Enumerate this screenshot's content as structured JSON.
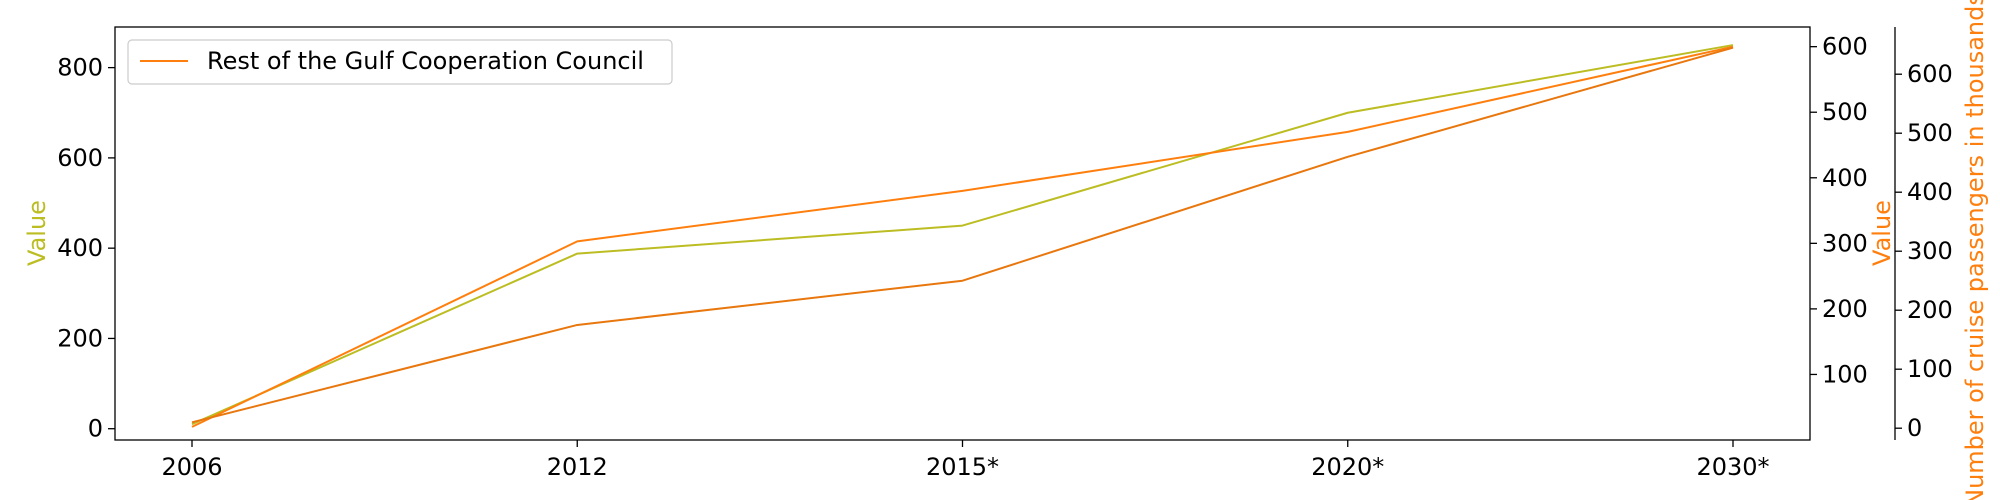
{
  "chart_data": {
    "type": "line",
    "categories": [
      "2006",
      "2012",
      "2015*",
      "2020*",
      "2030*"
    ],
    "grid": false,
    "legend": {
      "placement": "top-left",
      "entries": [
        "Rest of the Gulf Cooperation Council"
      ]
    },
    "axes": {
      "left": {
        "label": "Value",
        "label_color": "#bcbd22",
        "ylim": [
          -25,
          890
        ],
        "ticks": [
          0,
          200,
          400,
          600,
          800
        ],
        "tick_labels": [
          "0",
          "200",
          "400",
          "600",
          "800"
        ]
      },
      "right1": {
        "label": "Value",
        "label_color": "#ff7f0e",
        "ylim": [
          0,
          630
        ],
        "ticks": [
          100,
          200,
          300,
          400,
          500,
          600
        ],
        "tick_labels": [
          "100",
          "200",
          "300",
          "400",
          "500",
          "600"
        ]
      },
      "right2": {
        "label": "Number of cruise passengers in thousands",
        "label_color": "#ff7f0e",
        "ylim": [
          -20,
          680
        ],
        "ticks": [
          0,
          100,
          200,
          300,
          400,
          500,
          600
        ],
        "tick_labels": [
          "0",
          "100",
          "200",
          "300",
          "400",
          "500",
          "600"
        ]
      }
    },
    "series": [
      {
        "axis": "left",
        "color": "#bcbd22",
        "values": [
          10,
          388,
          450,
          700,
          850
        ]
      },
      {
        "axis": "right1",
        "color": "#ff7f0e",
        "values": [
          20,
          303,
          380,
          470,
          600
        ]
      },
      {
        "name": "Rest of the Gulf Cooperation Council",
        "axis": "right2",
        "color": "#e8770e",
        "values": [
          10,
          175,
          250,
          460,
          645
        ]
      }
    ]
  }
}
